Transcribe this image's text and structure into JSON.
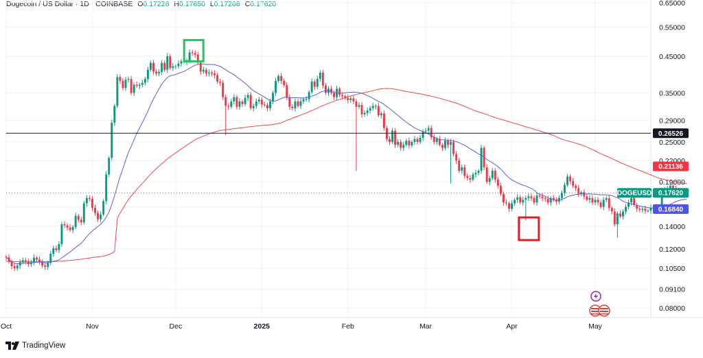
{
  "legend": {
    "symbol": "Dogecoin / US Dollar · 1D · COINBASE",
    "open_label": "O",
    "open": "0.17226",
    "high_label": "H",
    "high": "0.17650",
    "low_label": "L",
    "low": "0.17208",
    "close_label": "C",
    "close": "0.17620"
  },
  "brand": {
    "name": "TradingView"
  },
  "colors": {
    "up": "#089981",
    "down": "#f23645",
    "ma_fast": "#5b5fdb",
    "ma_slow": "#f0464b",
    "hline": "#131722",
    "price_line": "#089981",
    "highlight_green": "#22c55e",
    "highlight_red": "#e11d2a"
  },
  "icons": {
    "logo": "tradingview-logo-icon",
    "flag": "us-flag-icon",
    "spark": "lightning-icon"
  },
  "chart_data": {
    "type": "candlestick",
    "yscale": "log",
    "ylim": [
      0.075,
      0.68
    ],
    "y_ticks": [
      "0.65000",
      "0.55000",
      "0.45000",
      "0.35000",
      "0.29000",
      "0.25000",
      "0.22000",
      "0.19000",
      "0.16000",
      "0.14000",
      "0.12000",
      "0.10500",
      "0.09100",
      "0.08000"
    ],
    "y_tick_values": [
      0.65,
      0.55,
      0.45,
      0.35,
      0.29,
      0.25,
      0.22,
      0.19,
      0.16,
      0.14,
      0.12,
      0.105,
      0.091,
      0.08
    ],
    "x_ticks": [
      "Oct",
      "Nov",
      "Dec",
      "2025",
      "Feb",
      "Mar",
      "Apr",
      "May"
    ],
    "x_tick_dates": [
      "2024-10-01",
      "2024-11-01",
      "2024-12-01",
      "2025-01-01",
      "2025-02-01",
      "2025-03-01",
      "2025-04-01",
      "2025-05-01"
    ],
    "x_start": "2024-10-01",
    "x_end": "2025-05-04",
    "series": [
      {
        "name": "DOGEUSD",
        "kind": "candles",
        "start_date": "2024-10-01",
        "interval": "1D",
        "close": [
          0.1132,
          0.11,
          0.1065,
          0.105,
          0.107,
          0.1095,
          0.111,
          0.11,
          0.108,
          0.1095,
          0.113,
          0.1115,
          0.11,
          0.107,
          0.106,
          0.109,
          0.116,
          0.1205,
          0.119,
          0.124,
          0.142,
          0.141,
          0.139,
          0.1365,
          0.1395,
          0.1505,
          0.1465,
          0.144,
          0.164,
          0.17,
          0.169,
          0.159,
          0.1535,
          0.147,
          0.152,
          0.1665,
          0.2,
          0.224,
          0.285,
          0.32,
          0.39,
          0.38,
          0.362,
          0.383,
          0.385,
          0.35,
          0.37,
          0.367,
          0.37,
          0.375,
          0.385,
          0.41,
          0.43,
          0.405,
          0.4,
          0.404,
          0.43,
          0.41,
          0.45,
          0.415,
          0.42,
          0.42,
          0.428,
          0.435,
          0.432,
          0.436,
          0.462,
          0.46,
          0.455,
          0.43,
          0.405,
          0.41,
          0.4,
          0.402,
          0.4,
          0.395,
          0.378,
          0.375,
          0.34,
          0.32,
          0.318,
          0.33,
          0.34,
          0.318,
          0.33,
          0.324,
          0.338,
          0.345,
          0.315,
          0.32,
          0.33,
          0.334,
          0.323,
          0.322,
          0.315,
          0.33,
          0.35,
          0.38,
          0.393,
          0.38,
          0.369,
          0.34,
          0.318,
          0.315,
          0.33,
          0.32,
          0.33,
          0.335,
          0.335,
          0.352,
          0.378,
          0.365,
          0.385,
          0.402,
          0.368,
          0.35,
          0.36,
          0.35,
          0.34,
          0.36,
          0.345,
          0.342,
          0.338,
          0.333,
          0.337,
          0.33,
          0.318,
          0.322,
          0.302,
          0.305,
          0.31,
          0.315,
          0.32,
          0.32,
          0.3,
          0.304,
          0.275,
          0.255,
          0.25,
          0.27,
          0.245,
          0.25,
          0.24,
          0.245,
          0.252,
          0.244,
          0.25,
          0.255,
          0.25,
          0.257,
          0.268,
          0.27,
          0.275,
          0.258,
          0.25,
          0.255,
          0.245,
          0.24,
          0.252,
          0.245,
          0.25,
          0.23,
          0.22,
          0.205,
          0.21,
          0.198,
          0.195,
          0.193,
          0.2,
          0.202,
          0.205,
          0.24,
          0.21,
          0.19,
          0.195,
          0.205,
          0.193,
          0.185,
          0.175,
          0.165,
          0.164,
          0.158,
          0.164,
          0.168,
          0.171,
          0.165,
          0.168,
          0.17,
          0.172,
          0.17,
          0.165,
          0.173,
          0.172,
          0.17,
          0.169,
          0.165,
          0.17,
          0.168,
          0.166,
          0.17,
          0.176,
          0.186,
          0.197,
          0.191,
          0.185,
          0.182,
          0.175,
          0.177,
          0.172,
          0.168,
          0.17,
          0.165,
          0.168,
          0.165,
          0.16,
          0.168,
          0.17,
          0.159,
          0.155,
          0.142,
          0.153,
          0.15,
          0.155,
          0.16,
          0.165,
          0.17,
          0.162,
          0.158,
          0.157,
          0.158,
          0.156,
          0.156,
          0.159,
          0.16,
          0.156,
          0.16,
          0.179,
          0.18,
          0.182,
          0.185,
          0.181,
          0.18,
          0.176,
          0.178,
          0.174,
          0.1762
        ]
      },
      {
        "name": "MA 20",
        "kind": "line"
      },
      {
        "name": "MA 100",
        "kind": "line"
      }
    ],
    "horizontal_line": 0.26526,
    "price_labels": [
      {
        "text": "0.26526",
        "value": 0.26526,
        "style": "dark"
      },
      {
        "text": "0.21136",
        "value": 0.21136,
        "style": "red"
      },
      {
        "text": "DOGEUSD",
        "value": 0.1762,
        "style": "green-tag"
      },
      {
        "text": "0.17620",
        "value": 0.1762,
        "style": "green"
      },
      {
        "text": "0.16840",
        "value": 0.1684,
        "style": "blue"
      }
    ],
    "annotations": [
      {
        "type": "box",
        "color": "green",
        "date": "2024-12-08",
        "value": 0.462
      },
      {
        "type": "box",
        "color": "red",
        "date": "2025-04-07",
        "value": 0.142
      }
    ],
    "grid": true
  }
}
